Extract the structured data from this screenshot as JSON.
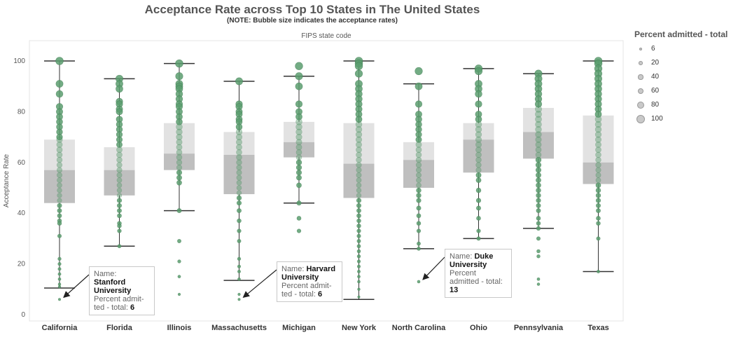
{
  "chart_data": {
    "type": "scatter",
    "title": "Acceptance Rate across Top 10 States in The United States",
    "subtitle": "(NOTE: Bubble size indicates the acceptance rates)",
    "xlabel": "FIPS state code",
    "ylabel": "Acceptance Rate",
    "ylim": [
      0,
      105
    ],
    "yticks": [
      0,
      20,
      40,
      60,
      80,
      100
    ],
    "grid": false,
    "legend": {
      "title": "Percent admitted - total",
      "placement": "right",
      "values": [
        6,
        20,
        40,
        60,
        80,
        100
      ]
    },
    "colors": {
      "point": "#5a9e6f",
      "point_stroke": "#3f7a52",
      "box_upper": "#e2e2e2",
      "box_lower": "#bfbfbf",
      "whisker": "#333333"
    },
    "categories": [
      "California",
      "Florida",
      "Illinois",
      "Massachusetts",
      "Michigan",
      "New York",
      "North Carolina",
      "Ohio",
      "Pennsylvania",
      "Texas"
    ],
    "boxes": [
      {
        "category": "California",
        "lower_whisker": 10.5,
        "q1": 44,
        "median": 57,
        "q3": 69,
        "upper_whisker": 100
      },
      {
        "category": "Florida",
        "lower_whisker": 27,
        "q1": 47,
        "median": 57,
        "q3": 66,
        "upper_whisker": 93
      },
      {
        "category": "Illinois",
        "lower_whisker": 41,
        "q1": 57,
        "median": 63.5,
        "q3": 75.5,
        "upper_whisker": 99
      },
      {
        "category": "Massachusetts",
        "lower_whisker": 13.5,
        "q1": 47.5,
        "median": 63,
        "q3": 72,
        "upper_whisker": 92
      },
      {
        "category": "Michigan",
        "lower_whisker": 44,
        "q1": 62,
        "median": 68,
        "q3": 76,
        "upper_whisker": 94
      },
      {
        "category": "New York",
        "lower_whisker": 6,
        "q1": 46,
        "median": 59.5,
        "q3": 75.5,
        "upper_whisker": 100
      },
      {
        "category": "North Carolina",
        "lower_whisker": 26,
        "q1": 50,
        "median": 61,
        "q3": 68,
        "upper_whisker": 91
      },
      {
        "category": "Ohio",
        "lower_whisker": 30,
        "q1": 56,
        "median": 69,
        "q3": 75.5,
        "upper_whisker": 97
      },
      {
        "category": "Pennsylvania",
        "lower_whisker": 34,
        "q1": 61.5,
        "median": 72,
        "q3": 81.5,
        "upper_whisker": 95
      },
      {
        "category": "Texas",
        "lower_whisker": 17,
        "q1": 51.5,
        "median": 60,
        "q3": 78.5,
        "upper_whisker": 100
      }
    ],
    "points": {
      "California": [
        100,
        91,
        87,
        82,
        80,
        78,
        76,
        74,
        72,
        70,
        69,
        67,
        65,
        63,
        61,
        59,
        57,
        55,
        53,
        51,
        49,
        47,
        45,
        43,
        41,
        39,
        37,
        36,
        31,
        22,
        20,
        18,
        16,
        14,
        12,
        11,
        6
      ],
      "Florida": [
        93,
        91,
        89,
        84,
        83,
        81,
        80,
        77,
        75,
        73,
        71,
        69,
        67,
        65,
        63,
        61,
        59,
        57,
        55,
        53,
        51,
        49,
        47,
        45,
        43,
        41,
        39,
        36,
        35,
        33,
        27
      ],
      "Illinois": [
        99,
        94,
        91,
        90,
        89,
        87,
        85,
        83,
        82,
        80,
        78,
        76,
        74,
        72,
        70,
        68,
        66,
        64,
        62,
        60,
        58,
        56,
        54,
        52,
        41,
        29,
        21,
        15,
        8
      ],
      "Massachusetts": [
        92,
        83,
        82,
        80,
        79,
        77,
        76,
        74,
        72,
        70,
        68,
        66,
        64,
        62,
        60,
        58,
        56,
        54,
        52,
        50,
        48,
        46,
        44,
        41,
        37,
        33,
        29,
        22,
        19,
        17,
        14,
        8,
        6
      ],
      "Michigan": [
        98,
        94,
        90,
        83,
        80,
        78,
        76,
        74,
        72,
        70,
        68,
        66,
        64,
        62,
        60,
        58,
        56,
        54,
        51,
        44,
        38,
        33
      ],
      "New York": [
        100,
        99,
        98,
        95,
        91,
        89,
        87,
        85,
        83,
        81,
        79,
        77,
        75,
        73,
        71,
        69,
        67,
        65,
        63,
        61,
        59,
        57,
        55,
        53,
        51,
        49,
        47,
        45,
        43,
        41,
        39,
        37,
        35,
        33,
        31,
        29,
        27,
        25,
        23,
        21,
        19,
        17,
        15,
        13,
        10,
        7
      ],
      "North Carolina": [
        96,
        90,
        83,
        79,
        77,
        75,
        73,
        71,
        69,
        67,
        65,
        63,
        61,
        59,
        57,
        55,
        53,
        51,
        49,
        47,
        45,
        42,
        39,
        36,
        33,
        28,
        26,
        13
      ],
      "Ohio": [
        97,
        96,
        91,
        89,
        87,
        83,
        79,
        77,
        75,
        73,
        71,
        69,
        67,
        65,
        63,
        61,
        59,
        57,
        55,
        53,
        49,
        45,
        42,
        38,
        33,
        30
      ],
      "Pennsylvania": [
        95,
        93,
        91,
        89,
        87,
        85,
        83,
        81,
        79,
        77,
        75,
        73,
        71,
        69,
        67,
        65,
        63,
        61,
        59,
        57,
        55,
        53,
        51,
        49,
        47,
        45,
        43,
        41,
        38,
        36,
        34,
        30,
        25,
        23,
        14,
        12
      ],
      "Texas": [
        100,
        99,
        97,
        95,
        93,
        91,
        89,
        87,
        85,
        83,
        81,
        79,
        77,
        75,
        73,
        71,
        69,
        67,
        65,
        63,
        61,
        59,
        57,
        55,
        53,
        51,
        49,
        47,
        45,
        43,
        41,
        38,
        36,
        30,
        17
      ]
    },
    "annotations": [
      {
        "category": "California",
        "value": 6,
        "name_label": "Name:",
        "name": "Stanford University",
        "metric_label": "Percent admit-ted - total:",
        "metric": "6"
      },
      {
        "category": "Massachusetts",
        "value": 6,
        "name_label": "Name:",
        "name": "Harvard University",
        "metric_label": "Percent admit-ted - total:",
        "metric": "6"
      },
      {
        "category": "North Carolina",
        "value": 13,
        "name_label": "Name:",
        "name": "Duke University",
        "metric_label": "Percent admitted - total:",
        "metric": "13"
      }
    ]
  }
}
